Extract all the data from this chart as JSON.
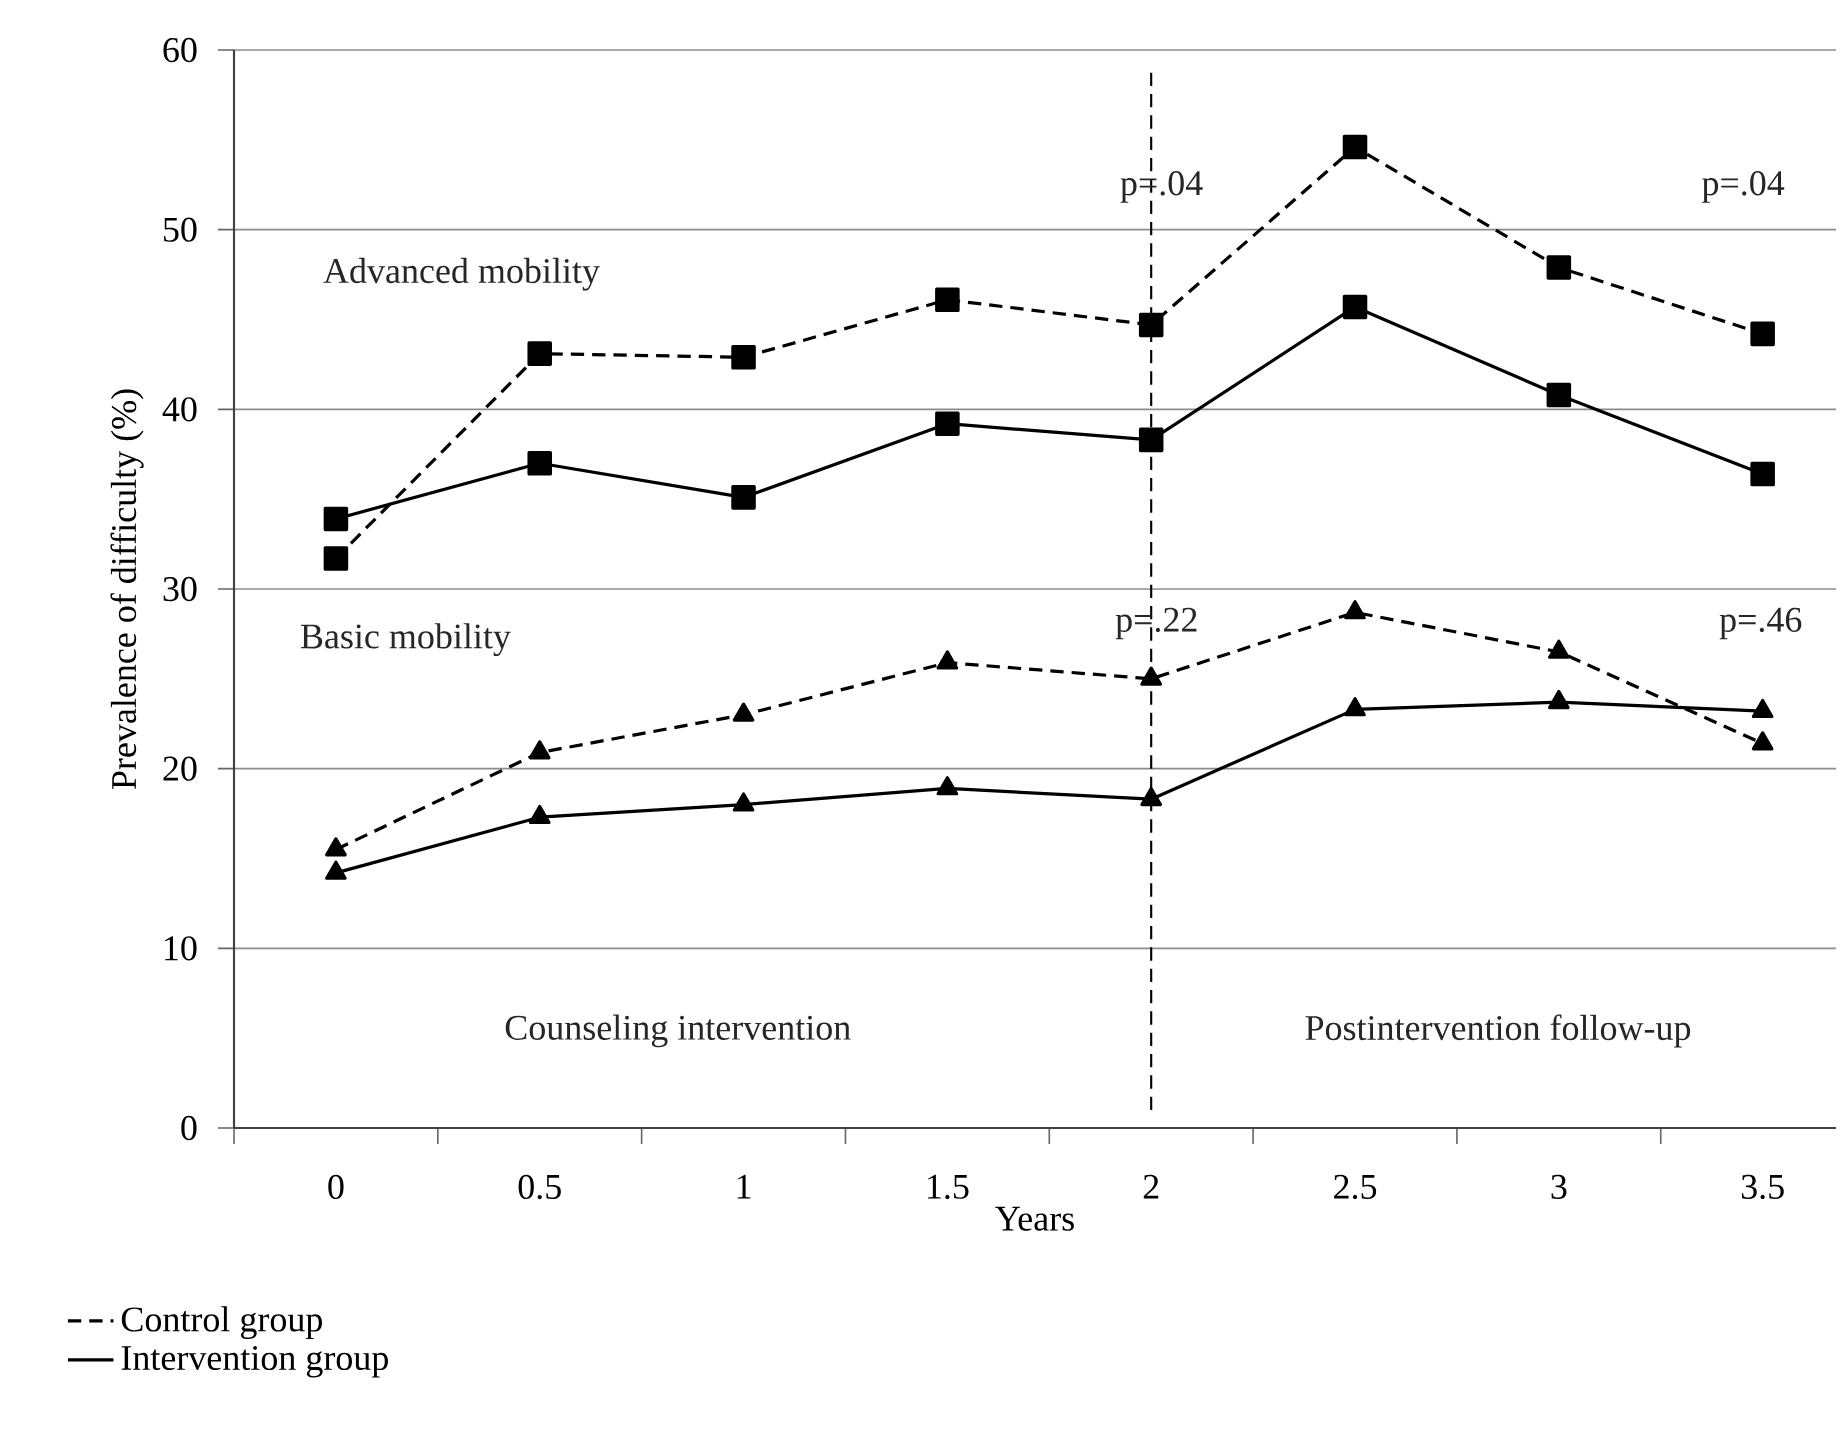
{
  "chart_data": {
    "type": "line",
    "xlabel": "Years",
    "ylabel": "Prevalence of difficulty (%)",
    "x": [
      0,
      0.5,
      1,
      1.5,
      2,
      2.5,
      3,
      3.5
    ],
    "series": [
      {
        "name": "Control group",
        "color": "#000000",
        "marker": "square",
        "line_style": "dashed",
        "values": [
          31.7,
          43.1,
          42.9,
          46.1,
          44.7,
          54.6,
          47.9,
          44.2
        ]
      },
      {
        "name": "Intervention group",
        "color": "#000000",
        "marker": "square",
        "line_style": "solid",
        "values": [
          33.9,
          37.0,
          35.1,
          39.2,
          38.3,
          45.7,
          40.8,
          36.4
        ]
      },
      {
        "color": "#000000",
        "marker": "triangle",
        "line_style": "dashed",
        "values": [
          15.5,
          20.9,
          23.0,
          25.9,
          25.0,
          28.7,
          26.5,
          21.4
        ]
      },
      {
        "color": "#000000",
        "marker": "triangle",
        "line_style": "solid",
        "values": [
          14.2,
          17.3,
          18.0,
          18.9,
          18.3,
          23.3,
          23.7,
          23.2
        ]
      }
    ],
    "xlim": [
      -0.25,
      3.68
    ],
    "xticks": [
      0,
      0.5,
      1,
      1.5,
      2,
      2.5,
      3,
      3.5
    ],
    "ylim": [
      0,
      60
    ],
    "yticks": [
      0,
      10,
      20,
      30,
      40,
      50,
      60
    ],
    "grid": "y",
    "legend": "bottom left",
    "ref_lines": [
      {
        "axis": "x",
        "value": 2,
        "color": "#000000",
        "line_style": "dashed"
      }
    ],
    "annotations": [
      "p=.04",
      "p=.04",
      "p=.22",
      "p=.46",
      "Advanced mobility",
      "Basic mobility",
      "Counseling intervention",
      "Postintervention follow-up"
    ]
  }
}
